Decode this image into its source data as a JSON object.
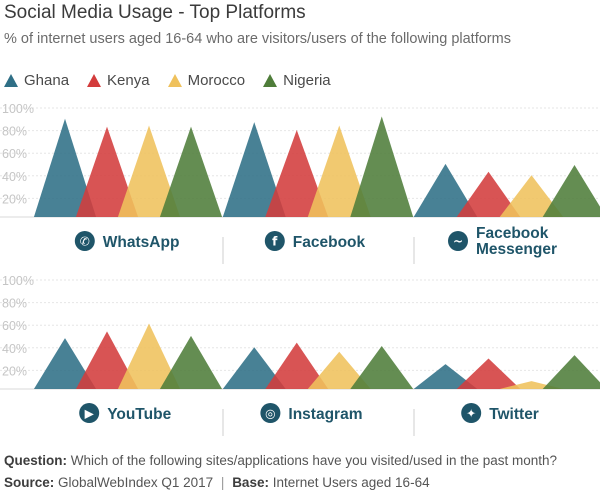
{
  "header": {
    "title": "Social Media Usage - Top Platforms",
    "subtitle": "% of internet users aged 16-64 who are visitors/users of the following platforms"
  },
  "colors": {
    "Ghana": "#2f6f86",
    "Kenya": "#d33c3c",
    "Morocco": "#efc15c",
    "Nigeria": "#4f7d3a",
    "gridline": "#e6e6e6",
    "ytick": "#c5c5c5",
    "icon": "#1f5569",
    "label": "#1f5569"
  },
  "chart_data": {
    "type": "bar",
    "categories": [
      "Ghana",
      "Kenya",
      "Morocco",
      "Nigeria"
    ],
    "y_ticks": [
      "20%",
      "40%",
      "60%",
      "80%",
      "100%"
    ],
    "ylim": [
      0,
      100
    ],
    "grid": true,
    "legend_position": "top-left",
    "panels": [
      {
        "name": "WhatsApp",
        "icon": "whatsapp-icon",
        "values": [
          87,
          80,
          81,
          80
        ]
      },
      {
        "name": "Facebook",
        "icon": "facebook-icon",
        "values": [
          84,
          77,
          81,
          89
        ]
      },
      {
        "name": "Facebook Messenger",
        "label_lines": [
          "Facebook",
          "Messenger"
        ],
        "icon": "messenger-icon",
        "values": [
          47,
          40,
          37,
          46
        ]
      },
      {
        "name": "YouTube",
        "icon": "youtube-icon",
        "values": [
          45,
          51,
          58,
          47
        ]
      },
      {
        "name": "Instagram",
        "icon": "instagram-icon",
        "values": [
          37,
          41,
          33,
          38
        ]
      },
      {
        "name": "Twitter",
        "icon": "twitter-icon",
        "values": [
          22,
          27,
          7,
          30
        ]
      }
    ]
  },
  "footer": {
    "question_label": "Question:",
    "question_text": "Which of the following sites/applications have you visited/used in the past month?",
    "source_label": "Source:",
    "source_text": "GlobalWebIndex Q1 2017",
    "separator": "|",
    "base_label": "Base:",
    "base_text": "Internet Users aged 16-64"
  }
}
